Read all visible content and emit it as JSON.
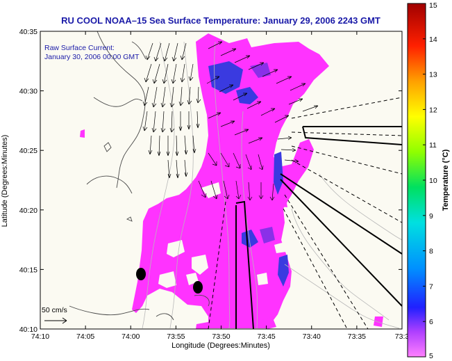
{
  "title": "RU COOL  NOAA–15  Sea Surface Temperature:  January 29, 2006 2243 GMT",
  "current_label": "Raw Surface Current:",
  "current_time": "January 30, 2006 00:00 GMT",
  "scale_label": "50 cm/s",
  "x_axis": {
    "label": "Longitude (Degrees:Minutes)",
    "ticks": [
      "74:10",
      "74:05",
      "74:00",
      "73:55",
      "73:50",
      "73:45",
      "73:40",
      "73:35",
      "73:3"
    ]
  },
  "y_axis": {
    "label": "Latitude (Degrees:Minutes)",
    "ticks": [
      "40:35",
      "40:30",
      "40:25",
      "40:20",
      "40:15",
      "40:10"
    ]
  },
  "colorbar": {
    "label": "Temperature (°C)",
    "ticks": [
      "15",
      "14",
      "13",
      "12",
      "11",
      "10",
      "9",
      "8",
      "7",
      "6",
      "5"
    ],
    "colors": [
      "#ff80ff",
      "#b040ff",
      "#2020ff",
      "#0090ff",
      "#00e0e0",
      "#00e060",
      "#90ff00",
      "#ffff00",
      "#ffa000",
      "#ff2000",
      "#a00000"
    ]
  },
  "colors": {
    "sst_main": "#ff33ff",
    "sst_cold": "#3a3ae0",
    "title_text": "#1a1aa8",
    "land": "#fbfaf2"
  }
}
